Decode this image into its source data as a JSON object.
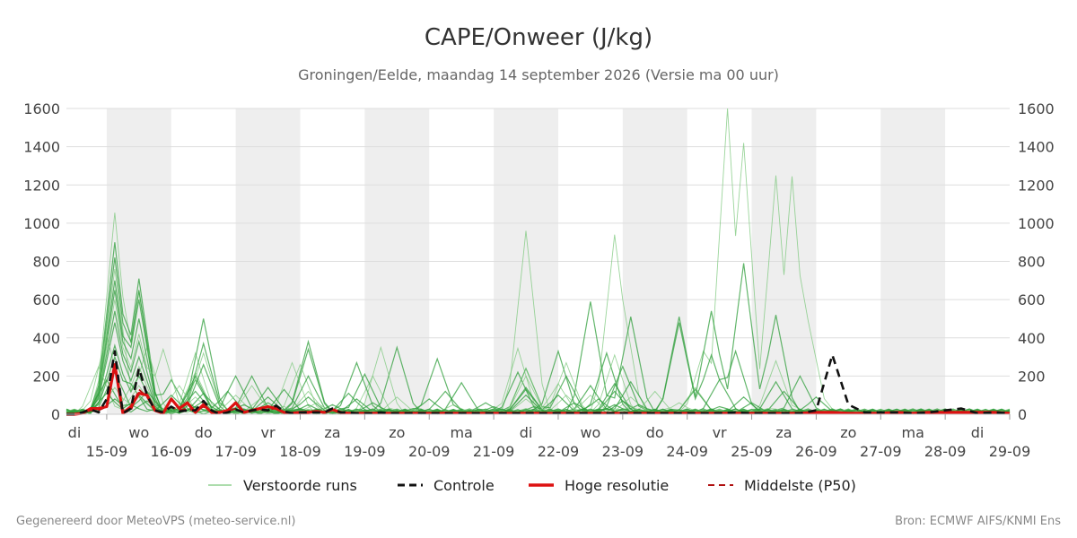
{
  "chart_data": {
    "type": "line",
    "title": "CAPE/Onweer (J/kg)",
    "subtitle": "Groningen/Eelde, maandag 14 september 2026 (Versie ma 00 uur)",
    "x_day_labels": [
      "di",
      "wo",
      "do",
      "vr",
      "za",
      "zo",
      "ma",
      "di",
      "wo",
      "do",
      "vr",
      "za",
      "zo",
      "ma",
      "di"
    ],
    "x_date_labels": [
      "15-09",
      "16-09",
      "17-09",
      "18-09",
      "19-09",
      "20-09",
      "21-09",
      "22-09",
      "23-09",
      "24-09",
      "25-09",
      "26-09",
      "27-09",
      "28-09",
      "29-09"
    ],
    "shaded_day_indices": [
      0,
      2,
      4,
      6,
      8,
      10,
      12
    ],
    "x_unit": "days from 14-09-2026 00 uur",
    "ylim": [
      0,
      1600
    ],
    "yticks": [
      0,
      200,
      400,
      600,
      800,
      1000,
      1200,
      1400,
      1600
    ],
    "grid": true,
    "legend_position": "bottom",
    "legend": [
      "Verstoorde runs",
      "Controle",
      "Hoge resolutie",
      "Middelste (P50)"
    ],
    "colors": {
      "ensemble_light": "#7ac77a",
      "ensemble_dark": "#2e9e3a",
      "controle": "#111111",
      "hoge_resolutie": "#dd1111",
      "p50": "#b01010",
      "shade": "#eeeeee",
      "grid": "#dddddd"
    },
    "series": [
      {
        "name": "Controle",
        "x": [
          0.75,
          1,
          1.25,
          1.5,
          1.75,
          2,
          2.25,
          2.5,
          2.75,
          3,
          3.25,
          3.5,
          3.75,
          4,
          4.25,
          4.5,
          4.75,
          5,
          5.25,
          5.5,
          5.75,
          6,
          6.25,
          6.5,
          6.75,
          7,
          7.25,
          7.5,
          7.75,
          8,
          8.25,
          8.5,
          8.75,
          9,
          9.25,
          9.5,
          9.75,
          10,
          10.25,
          10.5,
          10.75,
          11,
          11.5,
          12,
          12.5,
          13,
          13.5,
          14,
          14.5,
          15,
          15.5,
          16,
          16.5,
          17,
          17.5,
          18,
          18.5,
          19,
          19.5,
          20,
          20.5,
          21,
          21.5,
          22,
          22.5,
          23,
          23.5,
          24,
          24.5,
          25,
          25.5,
          26,
          26.5,
          27,
          27.5,
          28,
          28.5,
          29,
          29.5,
          30
        ],
        "values": [
          0,
          0,
          10,
          25,
          10,
          80,
          330,
          5,
          30,
          240,
          100,
          20,
          10,
          40,
          15,
          20,
          20,
          70,
          20,
          0,
          10,
          25,
          10,
          20,
          25,
          20,
          45,
          15,
          5,
          10,
          10,
          10,
          10,
          30,
          10,
          10,
          5,
          5,
          5,
          10,
          5,
          5,
          5,
          5,
          5,
          5,
          5,
          5,
          5,
          5,
          5,
          5,
          5,
          5,
          5,
          5,
          5,
          5,
          5,
          5,
          5,
          5,
          10,
          5,
          5,
          5,
          5,
          20,
          310,
          50,
          10,
          10,
          10,
          5,
          10,
          20,
          30,
          5,
          10,
          5
        ]
      },
      {
        "name": "Hoge resolutie",
        "x": [
          0.75,
          1,
          1.25,
          1.5,
          1.75,
          2,
          2.25,
          2.5,
          2.75,
          3,
          3.25,
          3.5,
          3.75,
          4,
          4.25,
          4.5,
          4.75,
          5,
          5.25,
          5.5,
          5.75,
          6,
          6.25,
          6.5,
          6.75,
          7,
          7.25,
          7.5,
          7.75,
          8,
          8.25,
          8.5,
          8.75,
          9,
          9.25,
          9.5,
          9.75,
          10,
          10.25,
          10.5,
          10.75,
          11,
          11.5,
          12,
          12.5,
          13,
          13.5,
          14,
          14.5,
          15,
          15.5,
          16,
          16.5,
          17,
          17.5,
          18,
          18.5,
          19,
          19.5,
          20,
          20.5,
          21,
          21.5,
          22,
          22.5,
          23,
          23.5,
          24,
          24.5,
          25,
          25.5,
          26,
          26.5,
          27,
          27.5,
          28,
          28.5,
          29,
          29.5,
          30
        ],
        "values": [
          0,
          0,
          5,
          30,
          30,
          40,
          260,
          5,
          40,
          110,
          100,
          20,
          5,
          80,
          30,
          60,
          10,
          50,
          10,
          10,
          20,
          60,
          10,
          20,
          30,
          40,
          30,
          10,
          5,
          10,
          10,
          15,
          10,
          25,
          10,
          5,
          5,
          5,
          5,
          5,
          5,
          5,
          5,
          5,
          5,
          5,
          5,
          5,
          5,
          5,
          5,
          5,
          5,
          5,
          5,
          5,
          5,
          5,
          5,
          5,
          5,
          5,
          5,
          5,
          5,
          5,
          5,
          10,
          10,
          5,
          5,
          5,
          10,
          5,
          10,
          10,
          10,
          10,
          10,
          5
        ]
      },
      {
        "name": "Middelste (P50)",
        "x": [
          0.75,
          1,
          1.25,
          1.5,
          1.75,
          2,
          2.25,
          2.5,
          2.75,
          3,
          3.25,
          3.5,
          3.75,
          4,
          4.25,
          4.5,
          4.75,
          5,
          5.25,
          5.5,
          5.75,
          6,
          6.25,
          6.5,
          6.75,
          7,
          7.25,
          7.5,
          7.75,
          8,
          8.25,
          8.5,
          8.75,
          9,
          9.25,
          9.5,
          9.75,
          10,
          10.25,
          10.5,
          10.75,
          11,
          11.5,
          12,
          12.5,
          13,
          13.5,
          14,
          14.5,
          15,
          15.5,
          16,
          16.5,
          17,
          17.5,
          18,
          18.5,
          19,
          19.5,
          20,
          20.5,
          21,
          21.5,
          22,
          22.5,
          23,
          23.5,
          24,
          24.5,
          25,
          25.5,
          26,
          26.5,
          27,
          27.5,
          28,
          28.5,
          29,
          29.5,
          30
        ],
        "values": [
          0,
          0,
          5,
          20,
          20,
          40,
          250,
          5,
          20,
          130,
          90,
          20,
          10,
          40,
          20,
          30,
          15,
          40,
          15,
          10,
          15,
          30,
          10,
          20,
          25,
          25,
          30,
          10,
          5,
          10,
          10,
          10,
          10,
          20,
          10,
          5,
          5,
          5,
          5,
          5,
          5,
          5,
          5,
          5,
          10,
          5,
          5,
          5,
          5,
          5,
          5,
          5,
          5,
          5,
          5,
          5,
          5,
          5,
          5,
          5,
          5,
          5,
          5,
          5,
          5,
          5,
          5,
          5,
          10,
          5,
          5,
          5,
          5,
          5,
          5,
          5,
          5,
          5,
          5,
          5
        ]
      }
    ],
    "ensemble_members": [
      {
        "peaks": [
          [
            2.25,
            1055
          ],
          [
            3.0,
            640
          ],
          [
            4.75,
            320
          ],
          [
            10.25,
            200
          ],
          [
            15.0,
            960
          ],
          [
            17.75,
            940
          ],
          [
            18.0,
            600
          ],
          [
            20.5,
            330
          ],
          [
            21.25,
            1600
          ],
          [
            21.75,
            1420
          ],
          [
            22.75,
            1250
          ],
          [
            23.25,
            1245
          ],
          [
            23.75,
            490
          ]
        ]
      },
      {
        "peaks": [
          [
            2.25,
            900
          ],
          [
            3.0,
            710
          ],
          [
            5.0,
            500
          ],
          [
            8.25,
            380
          ],
          [
            11.0,
            350
          ],
          [
            17.0,
            590
          ],
          [
            18.25,
            510
          ],
          [
            19.75,
            510
          ],
          [
            20.75,
            540
          ],
          [
            21.75,
            790
          ],
          [
            22.75,
            520
          ]
        ]
      },
      {
        "peaks": [
          [
            2.25,
            820
          ],
          [
            3.0,
            650
          ],
          [
            5.0,
            370
          ],
          [
            6.5,
            200
          ],
          [
            9.75,
            270
          ],
          [
            12.25,
            290
          ],
          [
            16.0,
            330
          ],
          [
            17.5,
            320
          ],
          [
            19.75,
            480
          ],
          [
            20.75,
            310
          ],
          [
            21.5,
            330
          ]
        ]
      },
      {
        "peaks": [
          [
            2.25,
            760
          ],
          [
            3.25,
            350
          ],
          [
            4.75,
            220
          ],
          [
            7.75,
            270
          ],
          [
            10.5,
            350
          ],
          [
            14.75,
            345
          ],
          [
            16.25,
            270
          ],
          [
            17.75,
            310
          ],
          [
            20.25,
            140
          ],
          [
            22.75,
            280
          ]
        ]
      },
      {
        "peaks": [
          [
            2.25,
            700
          ],
          [
            3.0,
            600
          ],
          [
            4.0,
            180
          ],
          [
            6.0,
            200
          ],
          [
            8.25,
            340
          ],
          [
            13.0,
            165
          ],
          [
            15.0,
            240
          ],
          [
            16.25,
            200
          ],
          [
            18.0,
            250
          ],
          [
            21.0,
            180
          ]
        ]
      },
      {
        "peaks": [
          [
            2.25,
            650
          ],
          [
            3.0,
            500
          ],
          [
            4.75,
            180
          ],
          [
            7.0,
            140
          ],
          [
            10.0,
            210
          ],
          [
            12.5,
            120
          ],
          [
            14.75,
            220
          ],
          [
            17.0,
            150
          ],
          [
            18.25,
            170
          ],
          [
            22.75,
            170
          ]
        ]
      },
      {
        "peaks": [
          [
            2.25,
            600
          ],
          [
            3.0,
            420
          ],
          [
            3.75,
            340
          ],
          [
            5.0,
            320
          ],
          [
            6.5,
            150
          ],
          [
            8.0,
            260
          ],
          [
            15.0,
            200
          ],
          [
            16.0,
            160
          ],
          [
            19.0,
            120
          ]
        ]
      },
      {
        "peaks": [
          [
            2.25,
            540
          ],
          [
            3.0,
            380
          ],
          [
            5.0,
            260
          ],
          [
            7.5,
            130
          ],
          [
            9.5,
            110
          ],
          [
            15.0,
            130
          ],
          [
            17.75,
            160
          ],
          [
            20.25,
            130
          ],
          [
            23.5,
            200
          ]
        ]
      },
      {
        "peaks": [
          [
            2.25,
            480
          ],
          [
            3.0,
            300
          ],
          [
            4.75,
            200
          ],
          [
            5.75,
            120
          ],
          [
            8.25,
            200
          ],
          [
            12.0,
            80
          ],
          [
            15.0,
            100
          ],
          [
            17.75,
            120
          ],
          [
            21.75,
            90
          ]
        ]
      },
      {
        "peaks": [
          [
            2.0,
            420
          ],
          [
            3.0,
            250
          ],
          [
            4.25,
            150
          ],
          [
            6.0,
            100
          ],
          [
            8.25,
            120
          ],
          [
            11.0,
            90
          ],
          [
            15.0,
            240
          ],
          [
            16.25,
            100
          ],
          [
            18.25,
            90
          ]
        ]
      },
      {
        "peaks": [
          [
            2.25,
            360
          ],
          [
            3.0,
            200
          ],
          [
            4.75,
            120
          ],
          [
            7.0,
            90
          ],
          [
            9.75,
            80
          ],
          [
            13.75,
            60
          ],
          [
            15.0,
            140
          ],
          [
            17.25,
            80
          ],
          [
            22.0,
            60
          ]
        ]
      },
      {
        "peaks": [
          [
            2.25,
            300
          ],
          [
            2.75,
            160
          ],
          [
            4.0,
            100
          ],
          [
            5.0,
            110
          ],
          [
            8.25,
            90
          ],
          [
            10.25,
            60
          ],
          [
            16.0,
            100
          ],
          [
            18.0,
            70
          ],
          [
            23.0,
            120
          ]
        ]
      },
      {
        "peaks": [
          [
            1.75,
            250
          ],
          [
            3.0,
            150
          ],
          [
            4.75,
            90
          ],
          [
            6.75,
            80
          ],
          [
            8.5,
            60
          ],
          [
            12.75,
            50
          ],
          [
            15.0,
            80
          ],
          [
            17.0,
            100
          ],
          [
            19.75,
            60
          ]
        ]
      },
      {
        "peaks": [
          [
            2.25,
            220
          ],
          [
            3.25,
            120
          ],
          [
            5.0,
            70
          ],
          [
            7.0,
            60
          ],
          [
            9.0,
            50
          ],
          [
            14.0,
            40
          ],
          [
            16.5,
            60
          ],
          [
            18.5,
            50
          ],
          [
            24.0,
            90
          ]
        ]
      },
      {
        "peaks": [
          [
            2.0,
            180
          ],
          [
            3.0,
            100
          ],
          [
            4.5,
            60
          ],
          [
            6.25,
            50
          ],
          [
            8.25,
            50
          ],
          [
            11.5,
            30
          ],
          [
            15.25,
            40
          ],
          [
            17.75,
            50
          ],
          [
            21.0,
            40
          ]
        ]
      },
      {
        "peaks": [
          [
            2.25,
            140
          ],
          [
            3.0,
            90
          ],
          [
            5.0,
            50
          ],
          [
            7.5,
            40
          ],
          [
            8.75,
            30
          ],
          [
            13.0,
            20
          ],
          [
            15.0,
            30
          ],
          [
            18.25,
            40
          ],
          [
            22.5,
            30
          ]
        ]
      },
      {
        "peaks": [
          [
            2.0,
            110
          ],
          [
            3.25,
            70
          ],
          [
            4.75,
            40
          ],
          [
            6.0,
            30
          ],
          [
            8.0,
            30
          ],
          [
            10.0,
            20
          ],
          [
            16.0,
            20
          ],
          [
            17.5,
            30
          ],
          [
            23.75,
            20
          ]
        ]
      },
      {
        "peaks": [
          [
            2.25,
            80
          ],
          [
            2.75,
            50
          ],
          [
            4.0,
            30
          ],
          [
            5.5,
            20
          ],
          [
            7.75,
            20
          ],
          [
            12.0,
            10
          ],
          [
            15.0,
            20
          ],
          [
            19.0,
            20
          ],
          [
            21.25,
            15
          ]
        ]
      }
    ]
  },
  "footer": {
    "left": "Gegenereerd door MeteoVPS (meteo-service.nl)",
    "right": "Bron: ECMWF AIFS/KNMI Ens"
  }
}
